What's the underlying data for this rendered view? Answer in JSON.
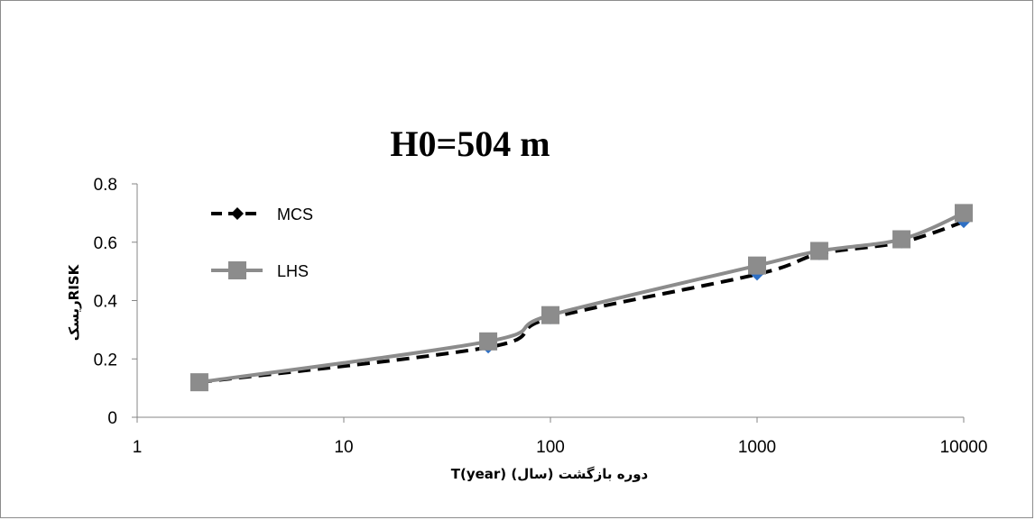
{
  "chart_data": {
    "type": "line",
    "title": "H0=504 m",
    "xlabel": "T(year) (سال) دوره بازگشت",
    "ylabel": "ریسکRISK",
    "x_scale": "log",
    "xlim": [
      1,
      10000
    ],
    "ylim": [
      0,
      0.8
    ],
    "x_ticks": [
      "1",
      "10",
      "100",
      "1000",
      "10000"
    ],
    "y_ticks": [
      "0",
      "0.2",
      "0.4",
      "0.6",
      "0.8"
    ],
    "x": [
      2,
      50,
      100,
      1000,
      2000,
      5000,
      10000
    ],
    "series": [
      {
        "name": "MCS",
        "values": [
          0.12,
          0.24,
          0.34,
          0.49,
          0.56,
          0.6,
          0.67
        ],
        "color": "#000000",
        "marker_color": "#2e6fc4",
        "line_style": "dashed",
        "marker": "diamond"
      },
      {
        "name": "LHS",
        "values": [
          0.12,
          0.26,
          0.35,
          0.52,
          0.57,
          0.61,
          0.7
        ],
        "color": "#8c8c8c",
        "line_style": "solid",
        "marker": "square"
      }
    ],
    "legend_position": "top-left",
    "grid": false
  }
}
